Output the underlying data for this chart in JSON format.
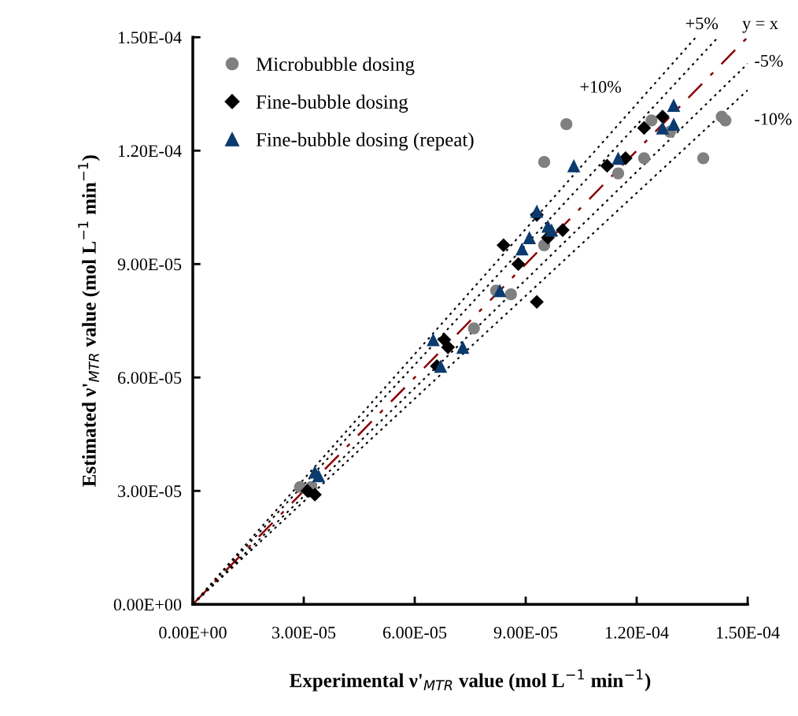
{
  "chart_data": {
    "type": "scatter",
    "xlabel": "Experimental ν'$_{MTR}$ value (mol L$^{−1}$ min$^{−1}$)",
    "ylabel": "Estimated ν'$_{MTR}$ value (mol L$^{−1}$ min$^{−1}$)",
    "xlim": [
      0,
      0.00015
    ],
    "ylim": [
      0,
      0.00015
    ],
    "xticks": [
      {
        "value": 0,
        "label": "0.00E+00"
      },
      {
        "value": 3e-05,
        "label": "3.00E-05"
      },
      {
        "value": 6e-05,
        "label": "6.00E-05"
      },
      {
        "value": 9e-05,
        "label": "9.00E-05"
      },
      {
        "value": 0.00012,
        "label": "1.20E-04"
      },
      {
        "value": 0.00015,
        "label": "1.50E-04"
      }
    ],
    "yticks": [
      {
        "value": 0,
        "label": "0.00E+00"
      },
      {
        "value": 3e-05,
        "label": "3.00E-05"
      },
      {
        "value": 6e-05,
        "label": "6.00E-05"
      },
      {
        "value": 9e-05,
        "label": "9.00E-05"
      },
      {
        "value": 0.00012,
        "label": "1.20E-04"
      },
      {
        "value": 0.00015,
        "label": "1.50E-04"
      }
    ],
    "grid": false,
    "legend": "top left",
    "series": [
      {
        "type": "line",
        "name": "+10%",
        "color": "#000000",
        "line_style": "dotted",
        "marker": "none",
        "x": [
          0,
          0.000136
        ],
        "values": [
          0,
          0.00015
        ]
      },
      {
        "type": "line",
        "name": "+5%",
        "color": "#000000",
        "line_style": "dotted",
        "marker": "none",
        "x": [
          0,
          0.000142
        ],
        "values": [
          0,
          0.00015
        ]
      },
      {
        "type": "line",
        "name": "y = x",
        "color": "#8b0000",
        "line_style": "dashed",
        "marker": "none",
        "x": [
          0,
          0.00015
        ],
        "values": [
          0,
          0.00015
        ]
      },
      {
        "type": "line",
        "name": "-5%",
        "color": "#000000",
        "line_style": "dotted",
        "marker": "none",
        "x": [
          0,
          0.00015
        ],
        "values": [
          0,
          0.000143
        ]
      },
      {
        "type": "line",
        "name": "-10%",
        "color": "#000000",
        "line_style": "dotted",
        "marker": "none",
        "x": [
          0,
          0.00015
        ],
        "values": [
          0,
          0.000136
        ]
      },
      {
        "name": "Microbubble dosing",
        "color": "#808080",
        "marker": "circle",
        "x": [
          2.9e-05,
          3.2e-05,
          7.6e-05,
          8.2e-05,
          8.6e-05,
          9.5e-05,
          9.5e-05,
          0.000101,
          0.000115,
          0.000122,
          0.000124,
          0.000129,
          0.000138,
          0.000143,
          0.000144
        ],
        "values": [
          3.1e-05,
          3.1e-05,
          7.3e-05,
          8.3e-05,
          8.2e-05,
          9.5e-05,
          0.000117,
          0.000127,
          0.000114,
          0.000118,
          0.000128,
          0.000125,
          0.000118,
          0.000129,
          0.000128
        ]
      },
      {
        "name": "Fine-bubble dosing",
        "color": "#000000",
        "marker": "diamond",
        "x": [
          3.1e-05,
          3.3e-05,
          6.6e-05,
          6.8e-05,
          6.9e-05,
          8.4e-05,
          8.8e-05,
          9.3e-05,
          9.3e-05,
          9.6e-05,
          0.0001,
          0.000112,
          0.000117,
          0.000122,
          0.000127
        ],
        "values": [
          3e-05,
          2.9e-05,
          6.3e-05,
          7e-05,
          6.8e-05,
          9.5e-05,
          9e-05,
          8e-05,
          0.000103,
          9.7e-05,
          9.9e-05,
          0.000116,
          0.000118,
          0.000126,
          0.000129
        ]
      },
      {
        "name": "Fine-bubble dosing (repeat)",
        "color": "#0b3a6e",
        "marker": "triangle",
        "x": [
          3.3e-05,
          3.4e-05,
          6.5e-05,
          6.7e-05,
          7.3e-05,
          8.3e-05,
          8.9e-05,
          9.1e-05,
          9.3e-05,
          9.6e-05,
          9.7e-05,
          0.000103,
          0.000115,
          0.000127,
          0.00013,
          0.00013
        ],
        "values": [
          3.5e-05,
          3.4e-05,
          7e-05,
          6.3e-05,
          6.8e-05,
          8.3e-05,
          9.4e-05,
          9.7e-05,
          0.000104,
          0.0001,
          9.9e-05,
          0.000116,
          0.000118,
          0.000126,
          0.000127,
          0.000132
        ]
      }
    ]
  }
}
